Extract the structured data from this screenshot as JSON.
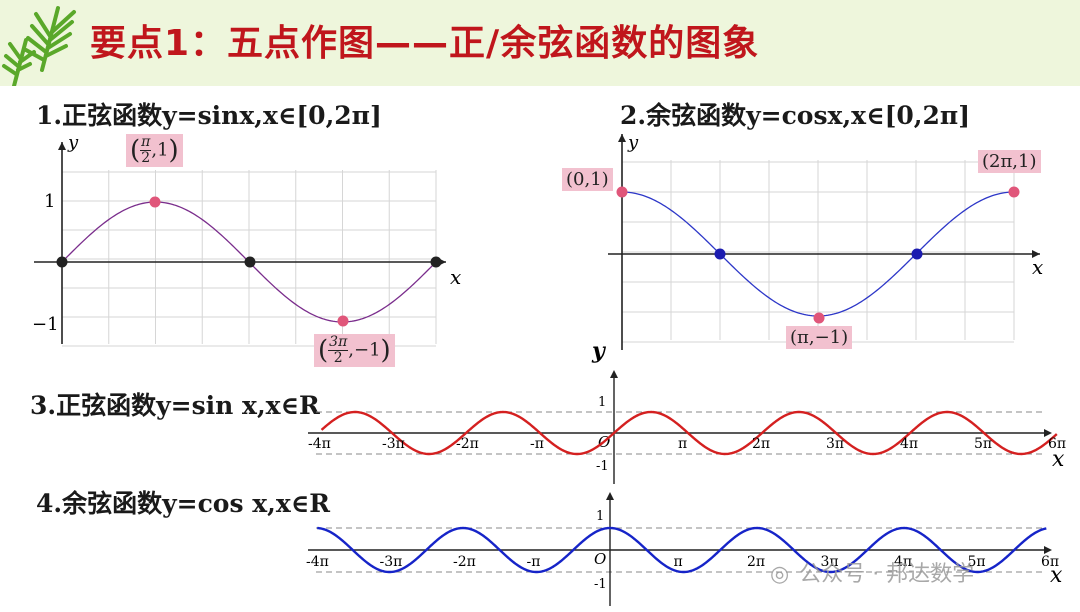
{
  "title": "要点1：五点作图——正/余弦函数的图象",
  "section1": {
    "heading_prefix": "1.正弦函数",
    "heading_func": "y=sinx,x∈[0,2π]",
    "y_axis": "y",
    "x_axis": "x",
    "tick_one": "1",
    "tick_neg_one": "−1",
    "point_max": {
      "num": "π",
      "den": "2",
      "val": "1"
    },
    "point_min": {
      "num": "3π",
      "den": "2",
      "val": "−1"
    }
  },
  "section2": {
    "heading_prefix": "2.余弦函数",
    "heading_func": "y=cosx,x∈[0,2π]",
    "y_axis": "y",
    "x_axis": "x",
    "point_start": "(0,1)",
    "point_end": "(2π,1)",
    "point_min": "(π,−1)"
  },
  "section3": {
    "heading_prefix": "3.正弦函数",
    "heading_func": "y=sin x,x∈R",
    "y_axis": "y",
    "x_axis": "x",
    "origin": "O",
    "tick_one": "1",
    "tick_neg_one": "-1",
    "ticks": [
      "-4π",
      "-3π",
      "-2π",
      "-π",
      "π",
      "2π",
      "3π",
      "4π",
      "5π",
      "6π"
    ]
  },
  "section4": {
    "heading_prefix": "4.余弦函数",
    "heading_func": "y=cos x,x∈R",
    "x_axis": "x",
    "origin": "O",
    "tick_one": "1",
    "tick_neg_one": "-1",
    "ticks": [
      "-4π",
      "-3π",
      "-2π",
      "-π",
      "π",
      "2π",
      "3π",
      "4π",
      "5π",
      "6π"
    ]
  },
  "watermark": {
    "label": "公众号 · 邦达数学"
  },
  "colors": {
    "title": "#c0161c",
    "sine": "#7a2d8c",
    "cosine": "#2d37c8",
    "sine_r": "#d42020",
    "cosine_r": "#1624c8",
    "point": "#e0567a",
    "zero": "#222222",
    "zero_blue": "#1c1cb0",
    "label_bg": "#f2c1cf"
  }
}
